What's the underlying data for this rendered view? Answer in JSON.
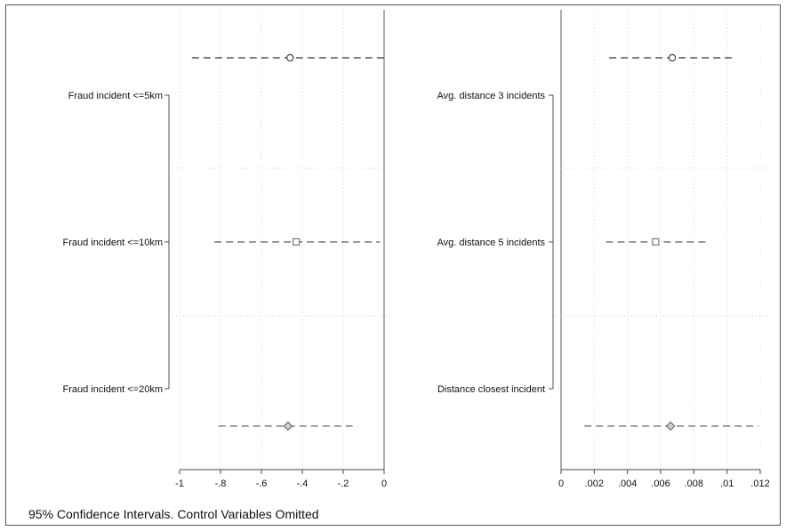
{
  "caption": "95% Confidence Intervals. Control Variables Omitted",
  "chart_data": [
    {
      "type": "coefficient-plot",
      "panel": "left",
      "xlim": [
        -1,
        0
      ],
      "xticks": [
        "-1",
        "-.8",
        "-.6",
        "-.4",
        "-.2",
        "0"
      ],
      "tick_values": [
        -1,
        -0.8,
        -0.6,
        -0.4,
        -0.2,
        0
      ],
      "grid": true,
      "categories": [
        "Fraud incident <=5km",
        "Fraud incident <=10km",
        "Fraud incident <=20km"
      ],
      "series": [
        {
          "label": "Fraud incident <=5km",
          "estimate": -0.46,
          "ci": [
            -0.94,
            0.02
          ],
          "marker": "circle"
        },
        {
          "label": "Fraud incident <=10km",
          "estimate": -0.43,
          "ci": [
            -0.83,
            -0.02
          ],
          "marker": "square"
        },
        {
          "label": "Fraud incident <=20km",
          "estimate": -0.47,
          "ci": [
            -0.81,
            -0.13
          ],
          "marker": "diamond"
        }
      ]
    },
    {
      "type": "coefficient-plot",
      "panel": "right",
      "xlim": [
        0,
        0.012
      ],
      "xticks": [
        "0",
        ".002",
        ".004",
        ".006",
        ".008",
        ".01",
        ".012"
      ],
      "tick_values": [
        0,
        0.002,
        0.004,
        0.006,
        0.008,
        0.01,
        0.012
      ],
      "grid": true,
      "categories": [
        "Avg. distance 3 incidents",
        "Avg. distance 5 incidents",
        "Distance closest incident"
      ],
      "series": [
        {
          "label": "Avg. distance 3 incidents",
          "estimate": 0.0067,
          "ci": [
            0.0029,
            0.0105
          ],
          "marker": "circle"
        },
        {
          "label": "Avg. distance 5 incidents",
          "estimate": 0.0057,
          "ci": [
            0.0027,
            0.0087
          ],
          "marker": "square"
        },
        {
          "label": "Distance closest incident",
          "estimate": 0.0066,
          "ci": [
            0.0014,
            0.0119
          ],
          "marker": "diamond"
        }
      ]
    }
  ]
}
